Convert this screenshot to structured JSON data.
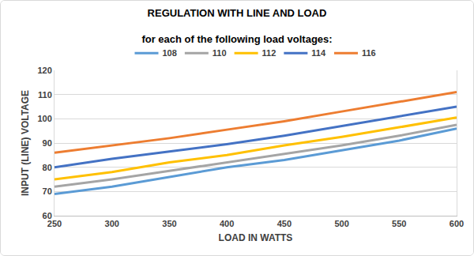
{
  "chart_data": {
    "type": "line",
    "title": "REGULATION WITH LINE AND LOAD",
    "subtitle": "for each of the following load voltages:",
    "x_label": "LOAD IN WATTS",
    "y_label": "INPUT (LINE) VOLTAGE",
    "categories": [
      "250",
      "300",
      "350",
      "400",
      "450",
      "500",
      "550",
      "600"
    ],
    "series": [
      {
        "name": "108",
        "color": "#5b9bd5",
        "values": [
          69,
          72,
          76,
          80,
          83,
          87,
          91,
          96
        ]
      },
      {
        "name": "110",
        "color": "#a5a5a5",
        "values": [
          72,
          75,
          78.5,
          82,
          85.5,
          89,
          93,
          97.5
        ]
      },
      {
        "name": "112",
        "color": "#ffc000",
        "values": [
          75,
          78,
          82,
          85,
          89,
          92.5,
          96.5,
          100.5
        ]
      },
      {
        "name": "114",
        "color": "#4472c4",
        "values": [
          80,
          83.5,
          86.5,
          89.5,
          93,
          97,
          101,
          105
        ]
      },
      {
        "name": "116",
        "color": "#ed7d31",
        "values": [
          86,
          89,
          92,
          95.5,
          99,
          103,
          107,
          111
        ]
      }
    ],
    "ylim": [
      60,
      120
    ],
    "yticks": [
      60,
      70,
      80,
      90,
      100,
      110,
      120
    ],
    "grid": true,
    "legend": "top"
  }
}
